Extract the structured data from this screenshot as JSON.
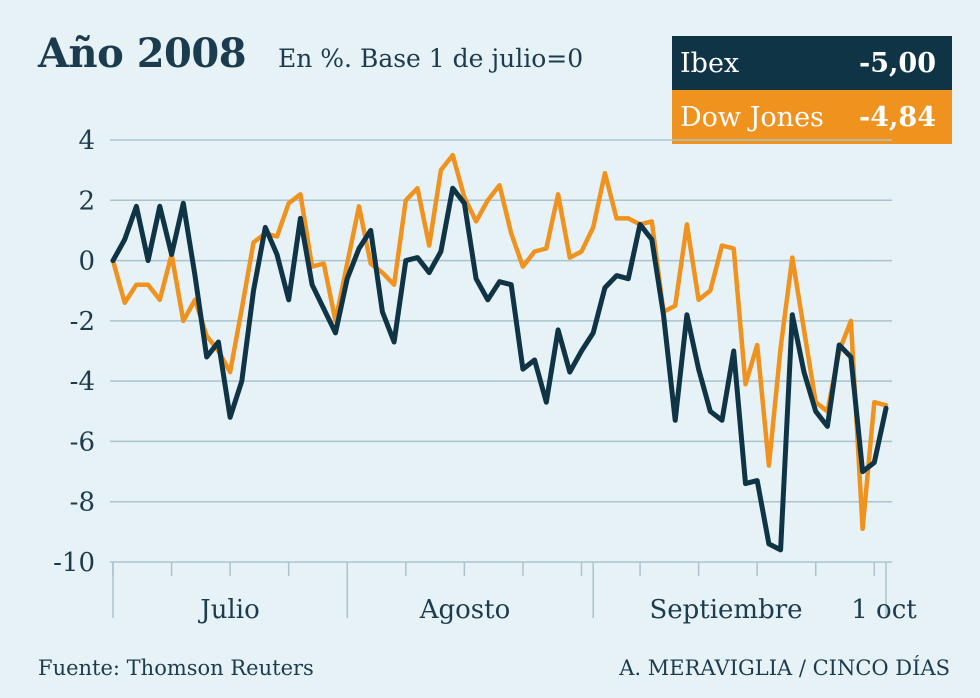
{
  "header": {
    "title": "Año 2008",
    "subtitle": "En %. Base 1 de julio=0"
  },
  "legend": [
    {
      "name": "Ibex",
      "value": "-5,00",
      "color": "#0f3446"
    },
    {
      "name": "Dow Jones",
      "value": "-4,84",
      "color": "#f0921e"
    }
  ],
  "footer": {
    "source": "Fuente: Thomson Reuters",
    "credit": "A. MERAVIGLIA / CINCO DÍAS"
  },
  "chart_data": {
    "type": "line",
    "ylim": [
      -10,
      4
    ],
    "yticks": [
      "4",
      "2",
      "0",
      "-2",
      "-4",
      "-6",
      "-8",
      "-10"
    ],
    "x_labels": [
      "Julio",
      "Agosto",
      "Septiembre",
      "1 oct"
    ],
    "grid": true,
    "series": [
      {
        "name": "Ibex",
        "color": "#0f3446",
        "values": [
          0,
          0.7,
          1.8,
          0,
          1.8,
          0.2,
          1.9,
          -0.5,
          -3.2,
          -2.7,
          -5.2,
          -4.0,
          -1.0,
          1.1,
          0.2,
          -1.3,
          1.4,
          -0.8,
          -1.6,
          -2.4,
          -0.6,
          0.4,
          1.0,
          -1.7,
          -2.7,
          0,
          0.1,
          -0.4,
          0.3,
          2.4,
          1.9,
          -0.6,
          -1.3,
          -0.7,
          -0.8,
          -3.6,
          -3.3,
          -4.7,
          -2.3,
          -3.7,
          -3.0,
          -2.4,
          -0.9,
          -0.5,
          -0.6,
          1.2,
          0.7,
          -1.8,
          -5.3,
          -1.8,
          -3.6,
          -5.0,
          -5.3,
          -3.0,
          -7.4,
          -7.3,
          -9.4,
          -9.6,
          -1.8,
          -3.7,
          -5.0,
          -5.5,
          -2.8,
          -3.2,
          -7.0,
          -6.7,
          -4.9
        ]
      },
      {
        "name": "Dow Jones",
        "color": "#f0921e",
        "values": [
          0,
          -1.4,
          -0.8,
          -0.8,
          -1.3,
          0.2,
          -2.0,
          -1.3,
          -2.5,
          -3.0,
          -3.7,
          -1.6,
          0.6,
          0.9,
          0.8,
          1.9,
          2.2,
          -0.2,
          -0.1,
          -2.0,
          -0.1,
          1.8,
          -0.1,
          -0.4,
          -0.8,
          2.0,
          2.4,
          0.5,
          3.0,
          3.5,
          2.1,
          1.3,
          2.0,
          2.5,
          0.9,
          -0.2,
          0.3,
          0.4,
          2.2,
          0.1,
          0.3,
          1.1,
          2.9,
          1.4,
          1.4,
          1.2,
          1.3,
          -1.7,
          -1.5,
          1.2,
          -1.3,
          -1.0,
          0.5,
          0.4,
          -4.1,
          -2.8,
          -6.8,
          -2.9,
          0.1,
          -2.3,
          -4.7,
          -5.0,
          -3.0,
          -2.0,
          -8.9,
          -4.7,
          -4.8
        ]
      }
    ]
  }
}
